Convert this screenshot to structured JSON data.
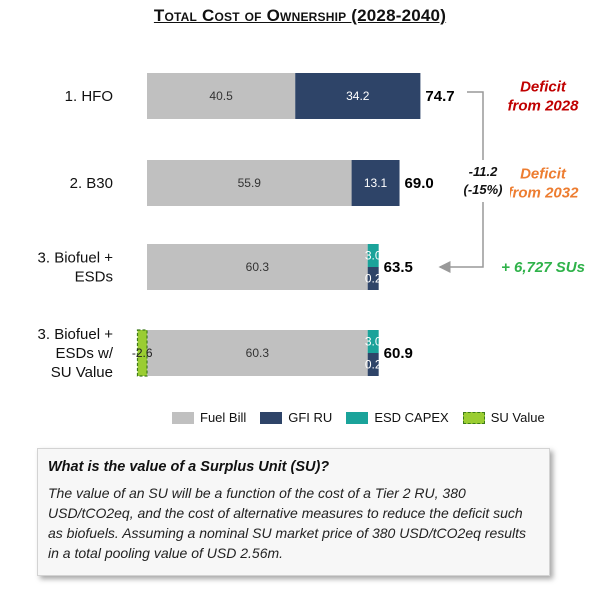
{
  "chart_data": {
    "type": "bar",
    "orientation": "horizontal",
    "stacked": true,
    "title": "Total Cost of Ownership (2028-2040)",
    "categories": [
      [
        "1. HFO"
      ],
      [
        "2. B30"
      ],
      [
        "3. Biofuel +",
        "ESDs"
      ],
      [
        "3. Biofuel +",
        "ESDs w/",
        "SU Value"
      ]
    ],
    "series": [
      {
        "name": "Fuel Bill",
        "color": "#c0c0c0",
        "values": [
          40.5,
          55.9,
          60.3,
          60.3
        ]
      },
      {
        "name": "GFI RU",
        "color": "#2e4468",
        "values": [
          34.2,
          13.1,
          0.2,
          0.2
        ]
      },
      {
        "name": "ESD CAPEX",
        "color": "#1aa39a",
        "values": [
          0,
          0,
          3.0,
          3.0
        ]
      },
      {
        "name": "SU Value",
        "color": "#9acd32",
        "values": [
          0,
          0,
          0,
          -2.6
        ]
      }
    ],
    "totals": [
      "74.7",
      "69.0",
      "63.5",
      "60.9"
    ],
    "value_labels": [
      [
        "40.5",
        "34.2",
        "",
        ""
      ],
      [
        "55.9",
        "13.1",
        "",
        ""
      ],
      [
        "60.3",
        "0.2",
        "3.0",
        ""
      ],
      [
        "60.3",
        "0.2",
        "3.0",
        "-2.6"
      ]
    ],
    "annotations": [
      {
        "lines": [
          "Deficit",
          "from 2028"
        ],
        "color": "#c00000"
      },
      {
        "lines": [
          "Deficit",
          "from 2032"
        ],
        "color": "#ed7d31"
      },
      {
        "lines": [
          "+ 6,727 SUs"
        ],
        "color": "#2fb24a"
      }
    ],
    "difference": {
      "lines": [
        "-11.2",
        "(-15%)"
      ]
    },
    "legend_position": "bottom"
  },
  "info_box": {
    "heading": "What is the value of a Surplus Unit (SU)?",
    "body": "The value of an SU will be a function of the cost of a Tier 2 RU, 380 USD/tCO2eq, and the cost of alternative measures to reduce the deficit such as biofuels. Assuming a nominal SU market price of 380 USD/tCO2eq results in a total pooling value of USD 2.56m."
  }
}
